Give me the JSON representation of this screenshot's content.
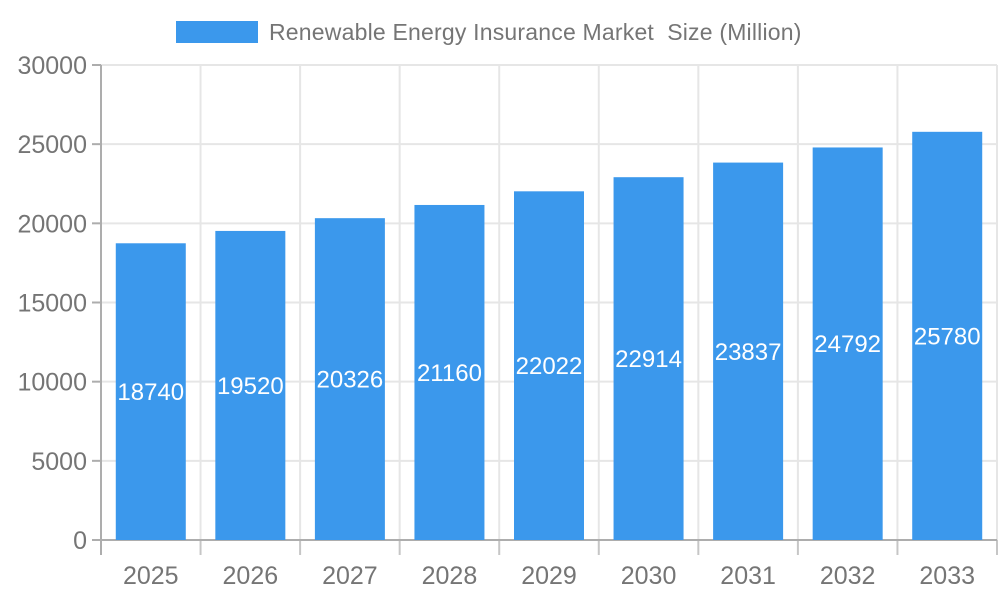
{
  "legend": {
    "label": "Renewable Energy Insurance Market  Size (Million)"
  },
  "chart_data": {
    "type": "bar",
    "title": "Renewable Energy Insurance Market  Size (Million)",
    "categories": [
      "2025",
      "2026",
      "2027",
      "2028",
      "2029",
      "2030",
      "2031",
      "2032",
      "2033"
    ],
    "values": [
      18740,
      19520,
      20326,
      21160,
      22022,
      22914,
      23837,
      24792,
      25780
    ],
    "xlabel": "",
    "ylabel": "",
    "ylim": [
      0,
      30000
    ],
    "yticks": [
      0,
      5000,
      10000,
      15000,
      20000,
      25000,
      30000
    ],
    "grid": "both",
    "legend_position": "top",
    "value_label_style": "inside-vertical-center-white"
  },
  "colors": {
    "bar": "#3B98EC",
    "grid": "#E6E6E6",
    "axis": "#ADADAD",
    "tick": "#C6C6C6",
    "axis_text": "#757575",
    "value_text": "#FFFFFF",
    "background": "#FFFFFF"
  }
}
